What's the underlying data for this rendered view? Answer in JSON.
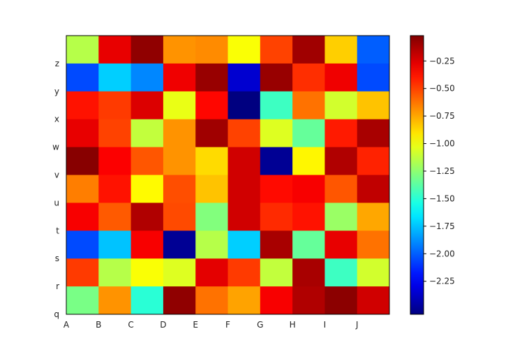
{
  "chart_data": {
    "type": "heatmap",
    "colormap": "jet",
    "x_tick_labels": [
      "A",
      "B",
      "C",
      "D",
      "E",
      "F",
      "G",
      "H",
      "I",
      "J"
    ],
    "y_tick_labels": [
      "q",
      "r",
      "s",
      "t",
      "u",
      "v",
      "w",
      "x",
      "y",
      "z"
    ],
    "rows_top_to_bottom": [
      [
        -1.15,
        -0.28,
        -0.06,
        -0.7,
        -0.68,
        -0.98,
        -0.5,
        -0.1,
        -0.85,
        -2.0
      ],
      [
        -2.05,
        -1.72,
        -1.9,
        -0.3,
        -0.08,
        -2.35,
        -0.08,
        -0.45,
        -0.3,
        -2.05
      ],
      [
        -0.38,
        -0.48,
        -0.25,
        -1.02,
        -0.35,
        -2.55,
        -1.45,
        -0.62,
        -1.08,
        -0.82
      ],
      [
        -0.28,
        -0.5,
        -1.12,
        -0.7,
        -0.1,
        -0.5,
        -1.05,
        -1.35,
        -0.4,
        -0.12
      ],
      [
        -0.04,
        -0.33,
        -0.55,
        -0.7,
        -0.88,
        -0.22,
        -2.5,
        -0.95,
        -0.14,
        -0.42
      ],
      [
        -0.65,
        -0.38,
        -0.96,
        -0.53,
        -0.82,
        -0.22,
        -0.36,
        -0.32,
        -0.55,
        -0.18
      ],
      [
        -0.32,
        -0.56,
        -0.14,
        -0.52,
        -1.28,
        -0.22,
        -0.44,
        -0.38,
        -1.22,
        -0.75
      ],
      [
        -2.05,
        -1.75,
        -0.32,
        -2.5,
        -1.15,
        -1.72,
        -0.12,
        -1.35,
        -0.28,
        -0.62
      ],
      [
        -0.48,
        -1.15,
        -0.98,
        -1.05,
        -0.27,
        -0.48,
        -1.12,
        -0.12,
        -1.45,
        -1.08
      ],
      [
        -1.3,
        -0.7,
        -1.5,
        -0.06,
        -0.62,
        -0.74,
        -0.32,
        -0.14,
        -0.05,
        -0.22
      ]
    ],
    "colorbar": {
      "min": -2.55,
      "max": -0.02,
      "ticks": [
        -2.25,
        -2.0,
        -1.75,
        -1.5,
        -1.25,
        -1.0,
        -0.75,
        -0.5,
        -0.25
      ],
      "tick_labels": [
        "−2.25",
        "−2.00",
        "−1.75",
        "−1.50",
        "−1.25",
        "−1.00",
        "−0.75",
        "−0.50",
        "−0.25"
      ]
    },
    "grid": false
  }
}
